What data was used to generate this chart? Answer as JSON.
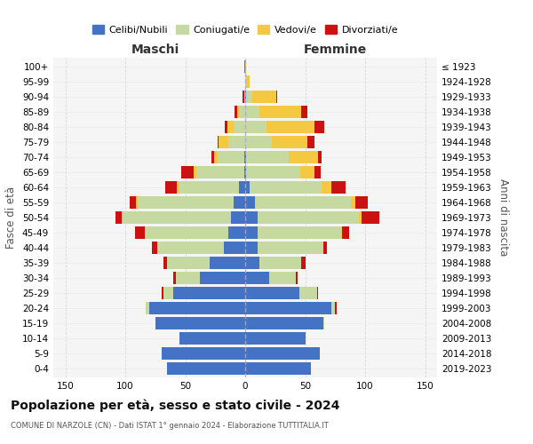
{
  "age_groups": [
    "0-4",
    "5-9",
    "10-14",
    "15-19",
    "20-24",
    "25-29",
    "30-34",
    "35-39",
    "40-44",
    "45-49",
    "50-54",
    "55-59",
    "60-64",
    "65-69",
    "70-74",
    "75-79",
    "80-84",
    "85-89",
    "90-94",
    "95-99",
    "100+"
  ],
  "birth_years": [
    "2019-2023",
    "2014-2018",
    "2009-2013",
    "2004-2008",
    "1999-2003",
    "1994-1998",
    "1989-1993",
    "1984-1988",
    "1979-1983",
    "1974-1978",
    "1969-1973",
    "1964-1968",
    "1959-1963",
    "1954-1958",
    "1949-1953",
    "1944-1948",
    "1939-1943",
    "1934-1938",
    "1929-1933",
    "1924-1928",
    "≤ 1923"
  ],
  "males": {
    "celibi": [
      65,
      70,
      55,
      75,
      80,
      60,
      38,
      30,
      18,
      14,
      12,
      10,
      5,
      1,
      1,
      0,
      0,
      0,
      0,
      0,
      1
    ],
    "coniugati": [
      0,
      0,
      0,
      0,
      3,
      8,
      20,
      35,
      55,
      70,
      90,
      80,
      50,
      40,
      22,
      14,
      10,
      5,
      1,
      0,
      0
    ],
    "vedovi": [
      0,
      0,
      0,
      0,
      0,
      0,
      0,
      0,
      0,
      0,
      1,
      1,
      2,
      2,
      3,
      8,
      5,
      2,
      0,
      0,
      0
    ],
    "divorziati": [
      0,
      0,
      0,
      0,
      0,
      2,
      2,
      3,
      5,
      8,
      5,
      5,
      10,
      10,
      2,
      1,
      2,
      2,
      1,
      0,
      0
    ]
  },
  "females": {
    "nubili": [
      55,
      62,
      50,
      65,
      72,
      45,
      20,
      12,
      10,
      10,
      10,
      8,
      4,
      1,
      1,
      0,
      0,
      0,
      1,
      0,
      0
    ],
    "coniugate": [
      0,
      0,
      0,
      1,
      3,
      15,
      22,
      35,
      55,
      70,
      85,
      80,
      60,
      45,
      35,
      22,
      18,
      12,
      5,
      1,
      0
    ],
    "vedove": [
      0,
      0,
      0,
      0,
      0,
      0,
      0,
      0,
      0,
      1,
      2,
      4,
      8,
      12,
      25,
      30,
      40,
      35,
      20,
      3,
      1
    ],
    "divorziate": [
      0,
      0,
      0,
      0,
      1,
      1,
      2,
      3,
      3,
      6,
      15,
      10,
      12,
      5,
      3,
      6,
      8,
      5,
      1,
      0,
      0
    ]
  },
  "colors": {
    "celibi": "#4472c4",
    "coniugati": "#c5d9a0",
    "vedovi": "#f5c842",
    "divorziati": "#cc1111"
  },
  "title": "Popolazione per età, sesso e stato civile - 2024",
  "subtitle": "COMUNE DI NARZOLE (CN) - Dati ISTAT 1° gennaio 2024 - Elaborazione TUTTITALIA.IT",
  "xlabel_left": "Maschi",
  "xlabel_right": "Femmine",
  "ylabel_left": "Fasce di età",
  "ylabel_right": "Anni di nascita",
  "xlim": 160,
  "bg_color": "#ffffff",
  "plot_bg": "#f5f5f5",
  "grid_color": "#cccccc",
  "legend_labels": [
    "Celibi/Nubili",
    "Coniugati/e",
    "Vedovi/e",
    "Divorziati/e"
  ]
}
